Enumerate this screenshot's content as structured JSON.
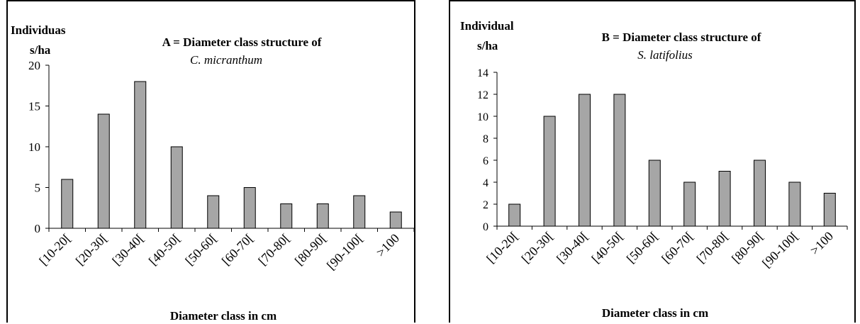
{
  "chart_data": [
    {
      "type": "bar",
      "title": "A = Diameter class structure of",
      "subtitle": "C. micranthum",
      "ylabel_line1": "Individuas",
      "ylabel_line2": "s/ha",
      "xlabel": "Diameter class in cm",
      "categories": [
        "[10-20[",
        "[20-30[",
        "[30-40[",
        "[40-50[",
        "[50-60[",
        "[60-70[",
        "[70-80[",
        "[80-90[",
        "[90-100[",
        ">100"
      ],
      "values": [
        6,
        14,
        18,
        10,
        4,
        5,
        3,
        3,
        4,
        2
      ],
      "ylim": [
        0,
        20
      ],
      "yticks": [
        0,
        5,
        10,
        15,
        20
      ],
      "grid": false,
      "bar_color": "#a6a6a6"
    },
    {
      "type": "bar",
      "title": "B = Diameter class structure of",
      "subtitle": "S. latifolius",
      "ylabel_line1": "Individual",
      "ylabel_line2": "s/ha",
      "xlabel": "Diameter class in cm",
      "categories": [
        "[10-20[",
        "[20-30[",
        "[30-40[",
        "[40-50[",
        "[50-60[",
        "[60-70[",
        "[70-80[",
        "[80-90[",
        "[90-100[",
        ">100"
      ],
      "values": [
        2,
        10,
        12,
        12,
        6,
        4,
        5,
        6,
        4,
        3
      ],
      "ylim": [
        0,
        14
      ],
      "yticks": [
        0,
        2,
        4,
        6,
        8,
        10,
        12,
        14
      ],
      "grid": false,
      "bar_color": "#a6a6a6"
    }
  ]
}
